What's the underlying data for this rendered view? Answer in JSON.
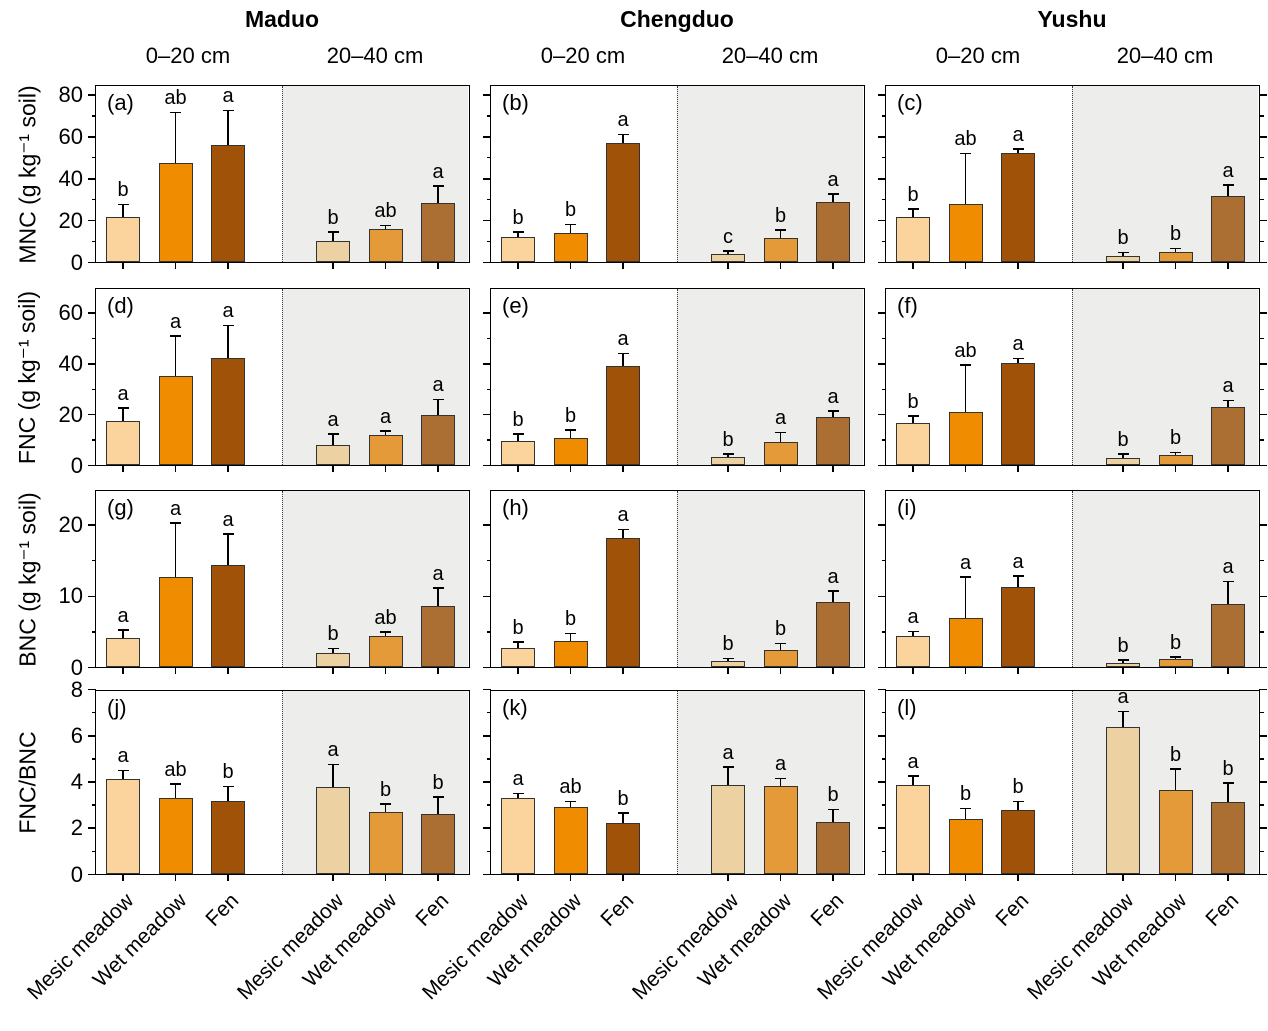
{
  "chart_data": {
    "type": "bar",
    "layout_hint": "12 grouped-bar panels (4 measures x 3 sites), each split into two depth sections; right section shaded; error bars with significance letters",
    "sites": [
      "Maduo",
      "Chengduo",
      "Yushu"
    ],
    "depth_labels": [
      "0–20 cm",
      "20–40 cm"
    ],
    "categories": [
      "Mesic meadow",
      "Wet meadow",
      "Fen"
    ],
    "colors": {
      "bars_0_20": [
        "#FAD49C",
        "#F08C00",
        "#A05208"
      ],
      "bars_20_40": [
        "#ECD1A2",
        "#E49A38",
        "#AC6F33"
      ],
      "shaded_section_bg": "#EDEDEB",
      "bar_border": "#333333",
      "axis": "#000000"
    },
    "rows": [
      {
        "ylabel": "MNC (g kg⁻¹ soil)",
        "ymax": 85,
        "yticks": [
          0,
          20,
          40,
          60,
          80
        ],
        "yminor": [
          10,
          30,
          50,
          70
        ],
        "panels": [
          {
            "letter": "(a)",
            "site": "Maduo",
            "groups": [
              {
                "depth": "0–20 cm",
                "bars": [
                  {
                    "category": "Mesic meadow",
                    "value": 21.5,
                    "err": 27,
                    "sig": "b"
                  },
                  {
                    "category": "Wet meadow",
                    "value": 47.5,
                    "err": 71,
                    "sig": "ab"
                  },
                  {
                    "category": "Fen",
                    "value": 56,
                    "err": 72,
                    "sig": "a"
                  }
                ]
              },
              {
                "depth": "20–40 cm",
                "bars": [
                  {
                    "category": "Mesic meadow",
                    "value": 10,
                    "err": 14,
                    "sig": "b"
                  },
                  {
                    "category": "Wet meadow",
                    "value": 16,
                    "err": 17,
                    "sig": "ab"
                  },
                  {
                    "category": "Fen",
                    "value": 28,
                    "err": 36,
                    "sig": "a"
                  }
                ]
              }
            ]
          },
          {
            "letter": "(b)",
            "site": "Chengduo",
            "groups": [
              {
                "depth": "0–20 cm",
                "bars": [
                  {
                    "category": "Mesic meadow",
                    "value": 12,
                    "err": 14,
                    "sig": "b"
                  },
                  {
                    "category": "Wet meadow",
                    "value": 14,
                    "err": 17.5,
                    "sig": "b"
                  },
                  {
                    "category": "Fen",
                    "value": 57,
                    "err": 60.5,
                    "sig": "a"
                  }
                ]
              },
              {
                "depth": "20–40 cm",
                "bars": [
                  {
                    "category": "Mesic meadow",
                    "value": 4,
                    "err": 5,
                    "sig": "c"
                  },
                  {
                    "category": "Wet meadow",
                    "value": 11.5,
                    "err": 15,
                    "sig": "b"
                  },
                  {
                    "category": "Fen",
                    "value": 28.5,
                    "err": 32,
                    "sig": "a"
                  }
                ]
              }
            ]
          },
          {
            "letter": "(c)",
            "site": "Yushu",
            "groups": [
              {
                "depth": "0–20 cm",
                "bars": [
                  {
                    "category": "Mesic meadow",
                    "value": 21.5,
                    "err": 25,
                    "sig": "b"
                  },
                  {
                    "category": "Wet meadow",
                    "value": 27.5,
                    "err": 51.5,
                    "sig": "ab"
                  },
                  {
                    "category": "Fen",
                    "value": 52,
                    "err": 53.5,
                    "sig": "a"
                  }
                ]
              },
              {
                "depth": "20–40 cm",
                "bars": [
                  {
                    "category": "Mesic meadow",
                    "value": 3,
                    "err": 4.2,
                    "sig": "b"
                  },
                  {
                    "category": "Wet meadow",
                    "value": 5,
                    "err": 6,
                    "sig": "b"
                  },
                  {
                    "category": "Fen",
                    "value": 31.5,
                    "err": 36.5,
                    "sig": "a"
                  }
                ]
              }
            ]
          }
        ]
      },
      {
        "ylabel": "FNC (g kg⁻¹ soil)",
        "ymax": 70,
        "yticks": [
          0,
          20,
          40,
          60
        ],
        "yminor": [
          10,
          30,
          50
        ],
        "panels": [
          {
            "letter": "(d)",
            "site": "Maduo",
            "groups": [
              {
                "depth": "0–20 cm",
                "bars": [
                  {
                    "category": "Mesic meadow",
                    "value": 17.5,
                    "err": 22,
                    "sig": "a"
                  },
                  {
                    "category": "Wet meadow",
                    "value": 35,
                    "err": 50.5,
                    "sig": "a"
                  },
                  {
                    "category": "Fen",
                    "value": 42,
                    "err": 54.5,
                    "sig": "a"
                  }
                ]
              },
              {
                "depth": "20–40 cm",
                "bars": [
                  {
                    "category": "Mesic meadow",
                    "value": 8,
                    "err": 12,
                    "sig": "a"
                  },
                  {
                    "category": "Wet meadow",
                    "value": 12,
                    "err": 13,
                    "sig": "a"
                  },
                  {
                    "category": "Fen",
                    "value": 19.5,
                    "err": 25.5,
                    "sig": "a"
                  }
                ]
              }
            ]
          },
          {
            "letter": "(e)",
            "site": "Chengduo",
            "groups": [
              {
                "depth": "0–20 cm",
                "bars": [
                  {
                    "category": "Mesic meadow",
                    "value": 9.5,
                    "err": 12,
                    "sig": "b"
                  },
                  {
                    "category": "Wet meadow",
                    "value": 10.5,
                    "err": 13.5,
                    "sig": "b"
                  },
                  {
                    "category": "Fen",
                    "value": 39,
                    "err": 43.5,
                    "sig": "a"
                  }
                ]
              },
              {
                "depth": "20–40 cm",
                "bars": [
                  {
                    "category": "Mesic meadow",
                    "value": 3.3,
                    "err": 4,
                    "sig": "b"
                  },
                  {
                    "category": "Wet meadow",
                    "value": 9,
                    "err": 12.5,
                    "sig": "a"
                  },
                  {
                    "category": "Fen",
                    "value": 19,
                    "err": 21,
                    "sig": "a"
                  }
                ]
              }
            ]
          },
          {
            "letter": "(f)",
            "site": "Yushu",
            "groups": [
              {
                "depth": "0–20 cm",
                "bars": [
                  {
                    "category": "Mesic meadow",
                    "value": 16.5,
                    "err": 19,
                    "sig": "b"
                  },
                  {
                    "category": "Wet meadow",
                    "value": 21,
                    "err": 39,
                    "sig": "ab"
                  },
                  {
                    "category": "Fen",
                    "value": 40,
                    "err": 41.5,
                    "sig": "a"
                  }
                ]
              },
              {
                "depth": "20–40 cm",
                "bars": [
                  {
                    "category": "Mesic meadow",
                    "value": 2.8,
                    "err": 4,
                    "sig": "b"
                  },
                  {
                    "category": "Wet meadow",
                    "value": 3.8,
                    "err": 4.6,
                    "sig": "b"
                  },
                  {
                    "category": "Fen",
                    "value": 23,
                    "err": 25,
                    "sig": "a"
                  }
                ]
              }
            ]
          }
        ]
      },
      {
        "ylabel": "BNC (g kg⁻¹ soil)",
        "ymax": 25,
        "yticks": [
          0,
          10,
          20
        ],
        "yminor": [
          5,
          15
        ],
        "panels": [
          {
            "letter": "(g)",
            "site": "Maduo",
            "groups": [
              {
                "depth": "0–20 cm",
                "bars": [
                  {
                    "category": "Mesic meadow",
                    "value": 4.1,
                    "err": 5.1,
                    "sig": "a"
                  },
                  {
                    "category": "Wet meadow",
                    "value": 12.6,
                    "err": 20.1,
                    "sig": "a"
                  },
                  {
                    "category": "Fen",
                    "value": 14.3,
                    "err": 18.6,
                    "sig": "a"
                  }
                ]
              },
              {
                "depth": "20–40 cm",
                "bars": [
                  {
                    "category": "Mesic meadow",
                    "value": 1.9,
                    "err": 2.5,
                    "sig": "b"
                  },
                  {
                    "category": "Wet meadow",
                    "value": 4.3,
                    "err": 4.8,
                    "sig": "ab"
                  },
                  {
                    "category": "Fen",
                    "value": 8.6,
                    "err": 11,
                    "sig": "a"
                  }
                ]
              }
            ]
          },
          {
            "letter": "(h)",
            "site": "Chengduo",
            "groups": [
              {
                "depth": "0–20 cm",
                "bars": [
                  {
                    "category": "Mesic meadow",
                    "value": 2.7,
                    "err": 3.4,
                    "sig": "b"
                  },
                  {
                    "category": "Wet meadow",
                    "value": 3.6,
                    "err": 4.6,
                    "sig": "b"
                  },
                  {
                    "category": "Fen",
                    "value": 18.1,
                    "err": 19.2,
                    "sig": "a"
                  }
                ]
              },
              {
                "depth": "20–40 cm",
                "bars": [
                  {
                    "category": "Mesic meadow",
                    "value": 0.9,
                    "err": 1.1,
                    "sig": "b"
                  },
                  {
                    "category": "Wet meadow",
                    "value": 2.4,
                    "err": 3.2,
                    "sig": "b"
                  },
                  {
                    "category": "Fen",
                    "value": 9.1,
                    "err": 10.6,
                    "sig": "a"
                  }
                ]
              }
            ]
          },
          {
            "letter": "(i)",
            "site": "Yushu",
            "groups": [
              {
                "depth": "0–20 cm",
                "bars": [
                  {
                    "category": "Mesic meadow",
                    "value": 4.3,
                    "err": 4.9,
                    "sig": "a"
                  },
                  {
                    "category": "Wet meadow",
                    "value": 6.9,
                    "err": 12.5,
                    "sig": "a"
                  },
                  {
                    "category": "Fen",
                    "value": 11.3,
                    "err": 12.7,
                    "sig": "a"
                  }
                ]
              },
              {
                "depth": "20–40 cm",
                "bars": [
                  {
                    "category": "Mesic meadow",
                    "value": 0.5,
                    "err": 0.9,
                    "sig": "b"
                  },
                  {
                    "category": "Wet meadow",
                    "value": 1.1,
                    "err": 1.3,
                    "sig": "b"
                  },
                  {
                    "category": "Fen",
                    "value": 8.9,
                    "err": 11.9,
                    "sig": "a"
                  }
                ]
              }
            ]
          }
        ]
      },
      {
        "ylabel": "FNC/BNC",
        "ymax": 8,
        "yticks": [
          0,
          2,
          4,
          6,
          8
        ],
        "yminor": [
          1,
          3,
          5,
          7
        ],
        "panels": [
          {
            "letter": "(j)",
            "site": "Maduo",
            "groups": [
              {
                "depth": "0–20 cm",
                "bars": [
                  {
                    "category": "Mesic meadow",
                    "value": 4.1,
                    "err": 4.45,
                    "sig": "a"
                  },
                  {
                    "category": "Wet meadow",
                    "value": 3.3,
                    "err": 3.85,
                    "sig": "ab"
                  },
                  {
                    "category": "Fen",
                    "value": 3.15,
                    "err": 3.75,
                    "sig": "b"
                  }
                ]
              },
              {
                "depth": "20–40 cm",
                "bars": [
                  {
                    "category": "Mesic meadow",
                    "value": 3.75,
                    "err": 4.7,
                    "sig": "a"
                  },
                  {
                    "category": "Wet meadow",
                    "value": 2.7,
                    "err": 3.0,
                    "sig": "b"
                  },
                  {
                    "category": "Fen",
                    "value": 2.6,
                    "err": 3.3,
                    "sig": "b"
                  }
                ]
              }
            ]
          },
          {
            "letter": "(k)",
            "site": "Chengduo",
            "groups": [
              {
                "depth": "0–20 cm",
                "bars": [
                  {
                    "category": "Mesic meadow",
                    "value": 3.3,
                    "err": 3.45,
                    "sig": "a"
                  },
                  {
                    "category": "Wet meadow",
                    "value": 2.9,
                    "err": 3.1,
                    "sig": "ab"
                  },
                  {
                    "category": "Fen",
                    "value": 2.2,
                    "err": 2.6,
                    "sig": "b"
                  }
                ]
              },
              {
                "depth": "20–40 cm",
                "bars": [
                  {
                    "category": "Mesic meadow",
                    "value": 3.85,
                    "err": 4.6,
                    "sig": "a"
                  },
                  {
                    "category": "Wet meadow",
                    "value": 3.8,
                    "err": 4.1,
                    "sig": "a"
                  },
                  {
                    "category": "Fen",
                    "value": 2.25,
                    "err": 2.75,
                    "sig": "b"
                  }
                ]
              }
            ]
          },
          {
            "letter": "(l)",
            "site": "Yushu",
            "groups": [
              {
                "depth": "0–20 cm",
                "bars": [
                  {
                    "category": "Mesic meadow",
                    "value": 3.85,
                    "err": 4.2,
                    "sig": "a"
                  },
                  {
                    "category": "Wet meadow",
                    "value": 2.4,
                    "err": 2.8,
                    "sig": "b"
                  },
                  {
                    "category": "Fen",
                    "value": 2.75,
                    "err": 3.1,
                    "sig": "b"
                  }
                ]
              },
              {
                "depth": "20–40 cm",
                "bars": [
                  {
                    "category": "Mesic meadow",
                    "value": 6.35,
                    "err": 7.0,
                    "sig": "a"
                  },
                  {
                    "category": "Wet meadow",
                    "value": 3.65,
                    "err": 4.5,
                    "sig": "b"
                  },
                  {
                    "category": "Fen",
                    "value": 3.1,
                    "err": 3.9,
                    "sig": "b"
                  }
                ]
              }
            ]
          }
        ]
      }
    ]
  }
}
